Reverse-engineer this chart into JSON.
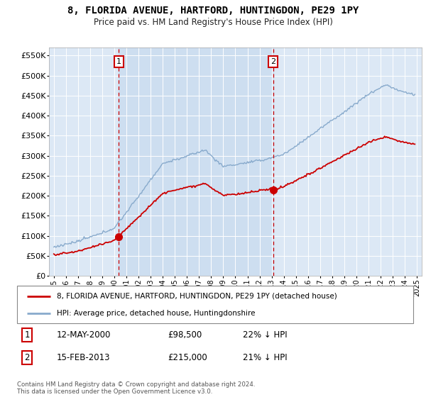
{
  "title": "8, FLORIDA AVENUE, HARTFORD, HUNTINGDON, PE29 1PY",
  "subtitle": "Price paid vs. HM Land Registry's House Price Index (HPI)",
  "ylabel_ticks": [
    "£0",
    "£50K",
    "£100K",
    "£150K",
    "£200K",
    "£250K",
    "£300K",
    "£350K",
    "£400K",
    "£450K",
    "£500K",
    "£550K"
  ],
  "ytick_values": [
    0,
    50000,
    100000,
    150000,
    200000,
    250000,
    300000,
    350000,
    400000,
    450000,
    500000,
    550000
  ],
  "ylim": [
    0,
    570000
  ],
  "x_start_year": 1995,
  "x_end_year": 2025,
  "plot_bg": "#dce8f5",
  "shade_color": "#ccddf0",
  "sale1_year": 2000.37,
  "sale1_price": 98500,
  "sale2_year": 2013.12,
  "sale2_price": 215000,
  "red_line_color": "#cc0000",
  "blue_line_color": "#88aacc",
  "marker_box_color": "#cc0000",
  "dashed_line_color": "#cc0000",
  "legend_label_red": "8, FLORIDA AVENUE, HARTFORD, HUNTINGDON, PE29 1PY (detached house)",
  "legend_label_blue": "HPI: Average price, detached house, Huntingdonshire",
  "sale1_date": "12-MAY-2000",
  "sale1_amount": "£98,500",
  "sale1_pct": "22% ↓ HPI",
  "sale2_date": "15-FEB-2013",
  "sale2_amount": "£215,000",
  "sale2_pct": "21% ↓ HPI",
  "footer": "Contains HM Land Registry data © Crown copyright and database right 2024.\nThis data is licensed under the Open Government Licence v3.0."
}
